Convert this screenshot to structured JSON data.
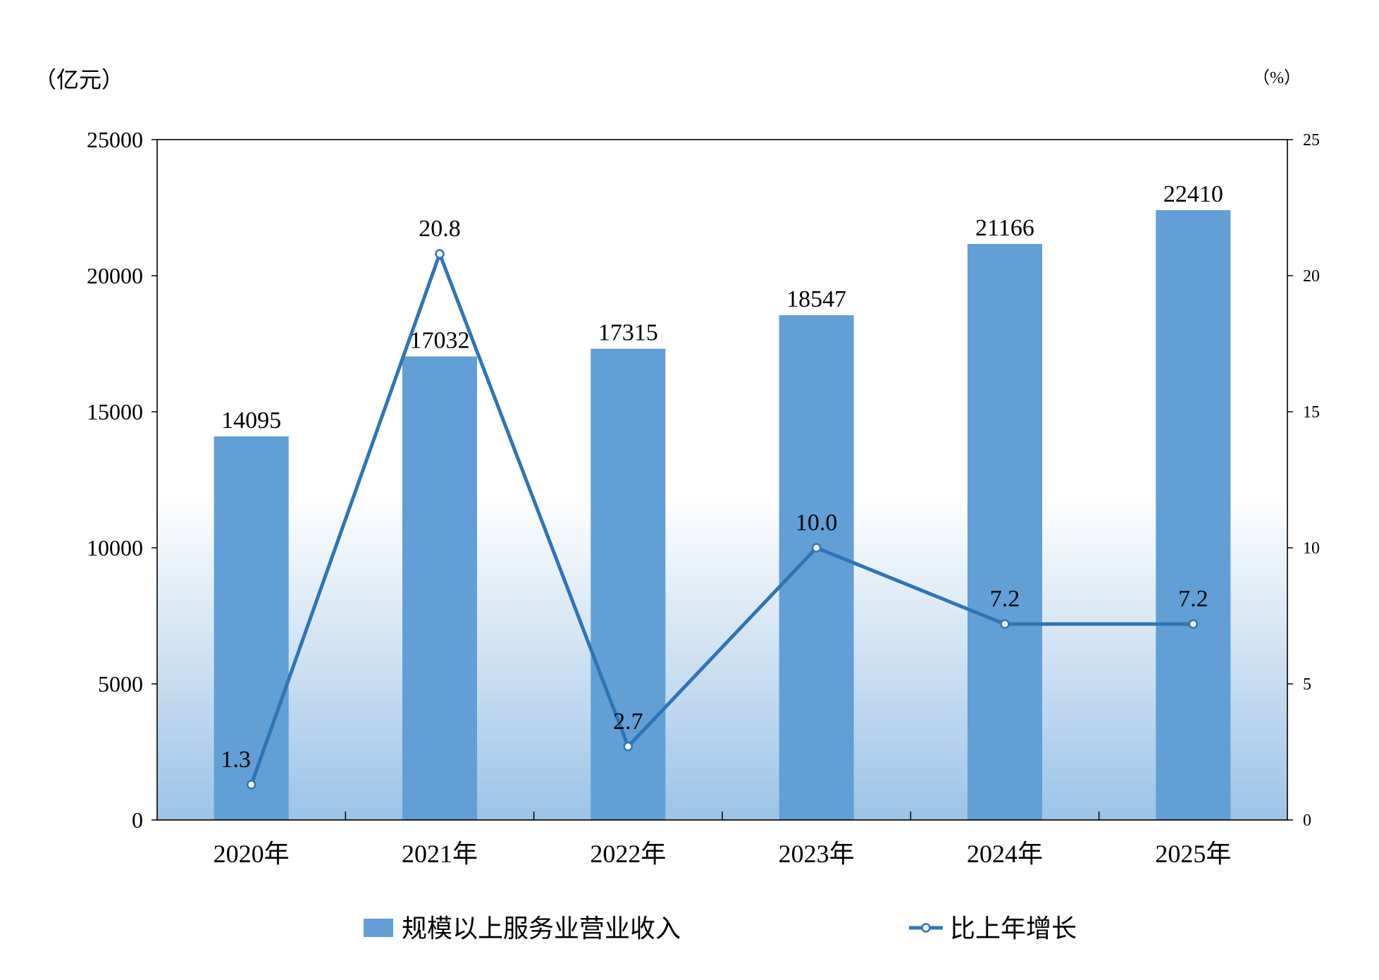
{
  "chart_data": {
    "type": "bar",
    "categories": [
      "2020年",
      "2021年",
      "2022年",
      "2023年",
      "2024年",
      "2025年"
    ],
    "series": [
      {
        "name": "规模以上服务业营业收入",
        "type": "bar",
        "axis": "left",
        "color": "#619fd6",
        "values": [
          14095,
          17032,
          17315,
          18547,
          21166,
          22410
        ],
        "labels": [
          "14095",
          "17032",
          "17315",
          "18547",
          "21166",
          "22410"
        ]
      },
      {
        "name": "比上年增长",
        "type": "line",
        "axis": "right",
        "color": "#2e75b6",
        "values": [
          1.3,
          20.8,
          2.7,
          10.0,
          7.2,
          7.2
        ],
        "labels": [
          "1.3",
          "20.8",
          "2.7",
          "10.0",
          "7.2",
          "7.2"
        ]
      }
    ],
    "left_axis": {
      "unit": "（亿元）",
      "ylim": [
        0,
        25000
      ],
      "ticks": [
        "0",
        "5000",
        "10000",
        "15000",
        "20000",
        "25000"
      ]
    },
    "right_axis": {
      "unit": "（%）",
      "ylim": [
        0,
        25
      ],
      "ticks": [
        "0",
        "5",
        "10",
        "15",
        "20",
        "25"
      ]
    },
    "grid": false,
    "legend_position": "bottom",
    "background_gradient": [
      "#ffffff",
      "#9dc3e6"
    ]
  }
}
